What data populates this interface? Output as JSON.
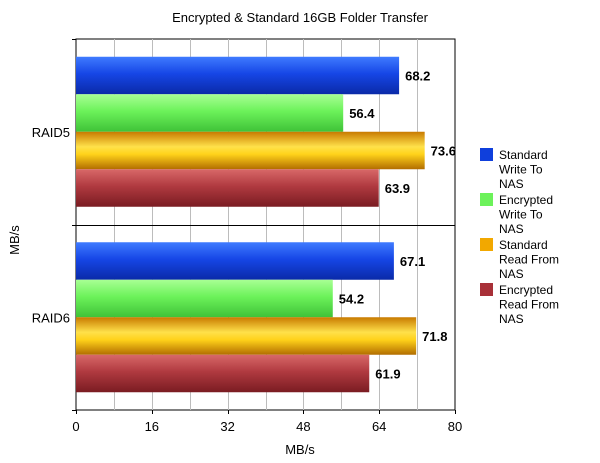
{
  "chart_data": {
    "type": "bar",
    "orientation": "horizontal",
    "title": "Encrypted & Standard 16GB Folder Transfer",
    "xlabel": "MB/s",
    "ylabel": "MB/s",
    "xlim": [
      0,
      80
    ],
    "xticks": [
      0,
      16,
      32,
      48,
      64,
      80
    ],
    "grid": true,
    "legend_position": "right",
    "categories": [
      "RAID5",
      "RAID6"
    ],
    "series": [
      {
        "name": "Standard Write To NAS",
        "legend_lines": [
          "Standard",
          "Write To",
          "NAS"
        ],
        "color": "#0f3fdc",
        "values": [
          68.2,
          67.1
        ]
      },
      {
        "name": "Encrypted Write To NAS",
        "legend_lines": [
          "Encrypted",
          "Write To",
          "NAS"
        ],
        "color": "#6cf25a",
        "values": [
          56.4,
          54.2
        ]
      },
      {
        "name": "Standard Read From NAS",
        "legend_lines": [
          "Standard",
          "Read From",
          "NAS"
        ],
        "color": "#f2a800",
        "values": [
          73.6,
          71.8
        ]
      },
      {
        "name": "Encrypted Read From NAS",
        "legend_lines": [
          "Encrypted",
          "Read From",
          "NAS"
        ],
        "color": "#a83038",
        "values": [
          63.9,
          61.9
        ]
      }
    ],
    "value_labels": [
      [
        "68.2",
        "56.4",
        "73.6",
        "63.9"
      ],
      [
        "67.1",
        "54.2",
        "71.8",
        "61.9"
      ]
    ]
  }
}
